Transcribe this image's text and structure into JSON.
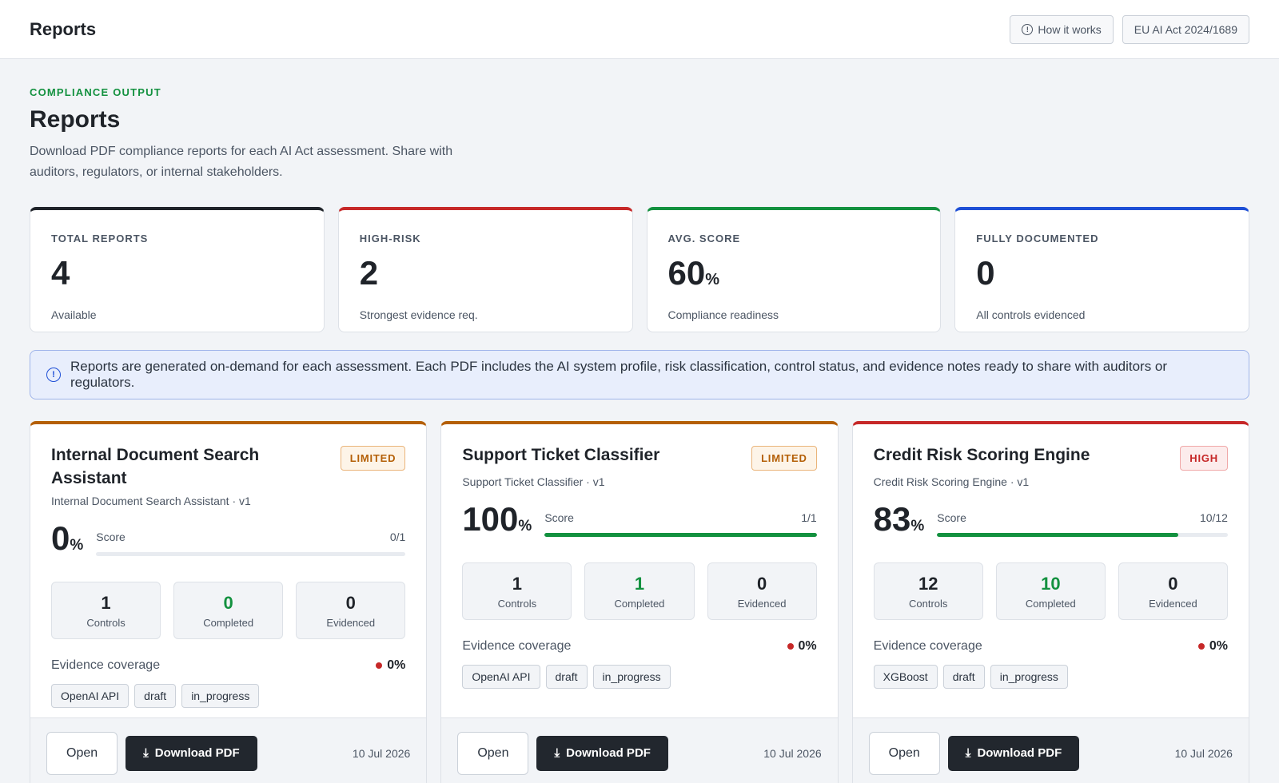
{
  "header": {
    "title": "Reports",
    "how_label": "How it works",
    "act_label": "EU AI Act 2024/1689"
  },
  "page": {
    "eyebrow": "COMPLIANCE OUTPUT",
    "title": "Reports",
    "description": "Download PDF compliance reports for each AI Act assessment. Share with auditors, regulators, or internal stakeholders."
  },
  "stats": [
    {
      "label": "TOTAL REPORTS",
      "value": "4",
      "unit": "",
      "sub": "Available"
    },
    {
      "label": "HIGH-RISK",
      "value": "2",
      "unit": "",
      "sub": "Strongest evidence req."
    },
    {
      "label": "AVG. SCORE",
      "value": "60",
      "unit": "%",
      "sub": "Compliance readiness"
    },
    {
      "label": "FULLY DOCUMENTED",
      "value": "0",
      "unit": "",
      "sub": "All controls evidenced"
    }
  ],
  "notice": "Reports are generated on-demand for each assessment. Each PDF includes the AI system profile, risk classification, control status, and evidence notes ready to share with auditors or regulators.",
  "cards": [
    {
      "title": "Internal Document Search Assistant",
      "badge": "LIMITED",
      "subtitle": "Internal Document Search Assistant · v1",
      "score": "0",
      "score_unit": "%",
      "score_label": "Score",
      "score_ratio": "0/1",
      "progress": 0,
      "controls": "1",
      "controls_label": "Controls",
      "completed": "0",
      "completed_label": "Completed",
      "evidenced": "0",
      "evidenced_label": "Evidenced",
      "coverage_label": "Evidence coverage",
      "coverage_value": "0%",
      "tags": [
        "OpenAI API",
        "draft",
        "in_progress"
      ],
      "open_label": "Open",
      "download_label": "Download PDF",
      "date": "10 Jul 2026"
    },
    {
      "title": "Support Ticket Classifier",
      "badge": "LIMITED",
      "subtitle": "Support Ticket Classifier · v1",
      "score": "100",
      "score_unit": "%",
      "score_label": "Score",
      "score_ratio": "1/1",
      "progress": 1,
      "controls": "1",
      "controls_label": "Controls",
      "completed": "1",
      "completed_label": "Completed",
      "evidenced": "0",
      "evidenced_label": "Evidenced",
      "coverage_label": "Evidence coverage",
      "coverage_value": "0%",
      "tags": [
        "OpenAI API",
        "draft",
        "in_progress"
      ],
      "open_label": "Open",
      "download_label": "Download PDF",
      "date": "10 Jul 2026"
    },
    {
      "title": "Credit Risk Scoring Engine",
      "badge": "HIGH",
      "subtitle": "Credit Risk Scoring Engine · v1",
      "score": "83",
      "score_unit": "%",
      "score_label": "Score",
      "score_ratio": "10/12",
      "progress": 0.83,
      "controls": "12",
      "controls_label": "Controls",
      "completed": "10",
      "completed_label": "Completed",
      "evidenced": "0",
      "evidenced_label": "Evidenced",
      "coverage_label": "Evidence coverage",
      "coverage_value": "0%",
      "tags": [
        "XGBoost",
        "draft",
        "in_progress"
      ],
      "open_label": "Open",
      "download_label": "Download PDF",
      "date": "10 Jul 2026"
    }
  ],
  "colors": {
    "accent_green": "#13913f",
    "risk_limited": "#b45f06",
    "risk_high": "#c62828",
    "info_blue": "#1e4fd6"
  }
}
